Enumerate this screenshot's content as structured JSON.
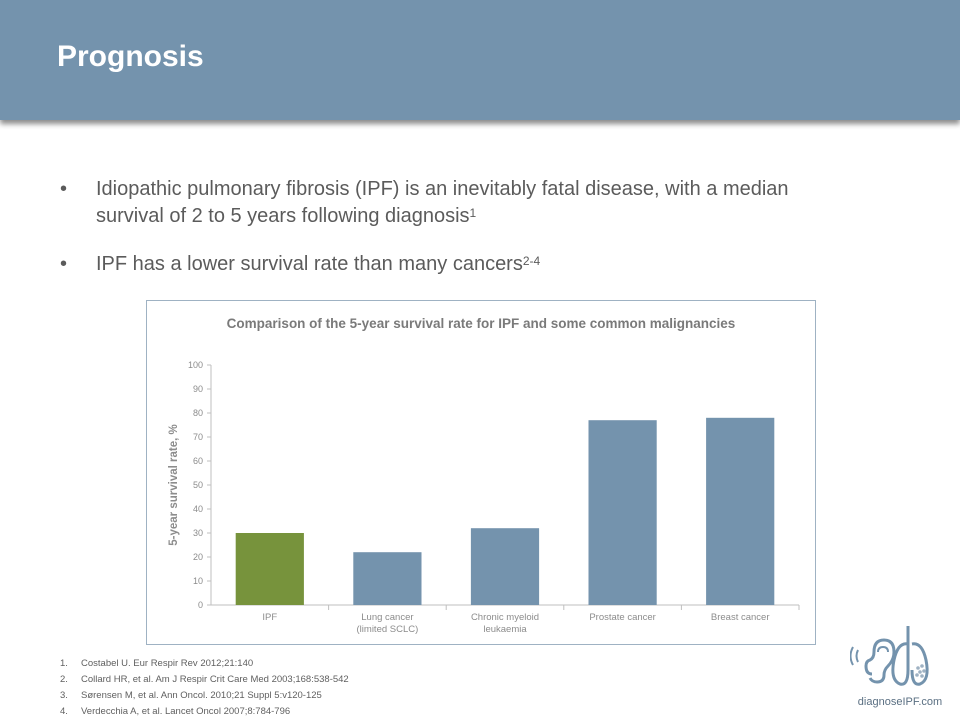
{
  "slide": {
    "title": "Prognosis",
    "bullets": [
      {
        "text": "Idiopathic pulmonary fibrosis (IPF) is an inevitably fatal disease, with a median survival of 2 to 5 years following diagnosis",
        "sup": "1"
      },
      {
        "text": "IPF has a lower survival rate than many cancers",
        "sup": "2-4"
      }
    ],
    "bullet_char": "•"
  },
  "chart_data": {
    "type": "bar",
    "title": "Comparison of the 5-year survival rate for IPF and some common malignancies",
    "xlabel": "",
    "ylabel": "5-year survival rate, %",
    "ylim": [
      0,
      100
    ],
    "yticks": [
      0,
      10,
      20,
      30,
      40,
      50,
      60,
      70,
      80,
      90,
      100
    ],
    "categories": [
      "IPF",
      "Lung cancer (limited SCLC)",
      "Chronic myeloid leukaemia",
      "Prostate cancer",
      "Breast cancer"
    ],
    "category_lines": [
      [
        "IPF"
      ],
      [
        "Lung cancer",
        "(limited SCLC)"
      ],
      [
        "Chronic myeloid",
        "leukaemia"
      ],
      [
        "Prostate cancer"
      ],
      [
        "Breast cancer"
      ]
    ],
    "values": [
      30,
      22,
      32,
      77,
      78
    ],
    "colors": [
      "#77933c",
      "#7493ad",
      "#7493ad",
      "#7493ad",
      "#7493ad"
    ],
    "grid": false,
    "legend": "none"
  },
  "references": [
    {
      "num": "1.",
      "text": "Costabel U. Eur Respir Rev 2012;21:140"
    },
    {
      "num": "2.",
      "text": "Collard HR, et al. Am J Respir Crit Care Med 2003;168:538-542"
    },
    {
      "num": "3.",
      "text": "Sørensen M, et al. Ann Oncol. 2010;21 Suppl 5:v120-125"
    },
    {
      "num": "4.",
      "text": "Verdecchia A, et al. Lancet Oncol 2007;8:784-796"
    }
  ],
  "logo": {
    "text": "diagnoseIPF.com",
    "icon": "ear-lungs-icon"
  },
  "colors": {
    "header": "#7493ad",
    "ipf_bar": "#77933c",
    "cancer_bar": "#7493ad"
  }
}
